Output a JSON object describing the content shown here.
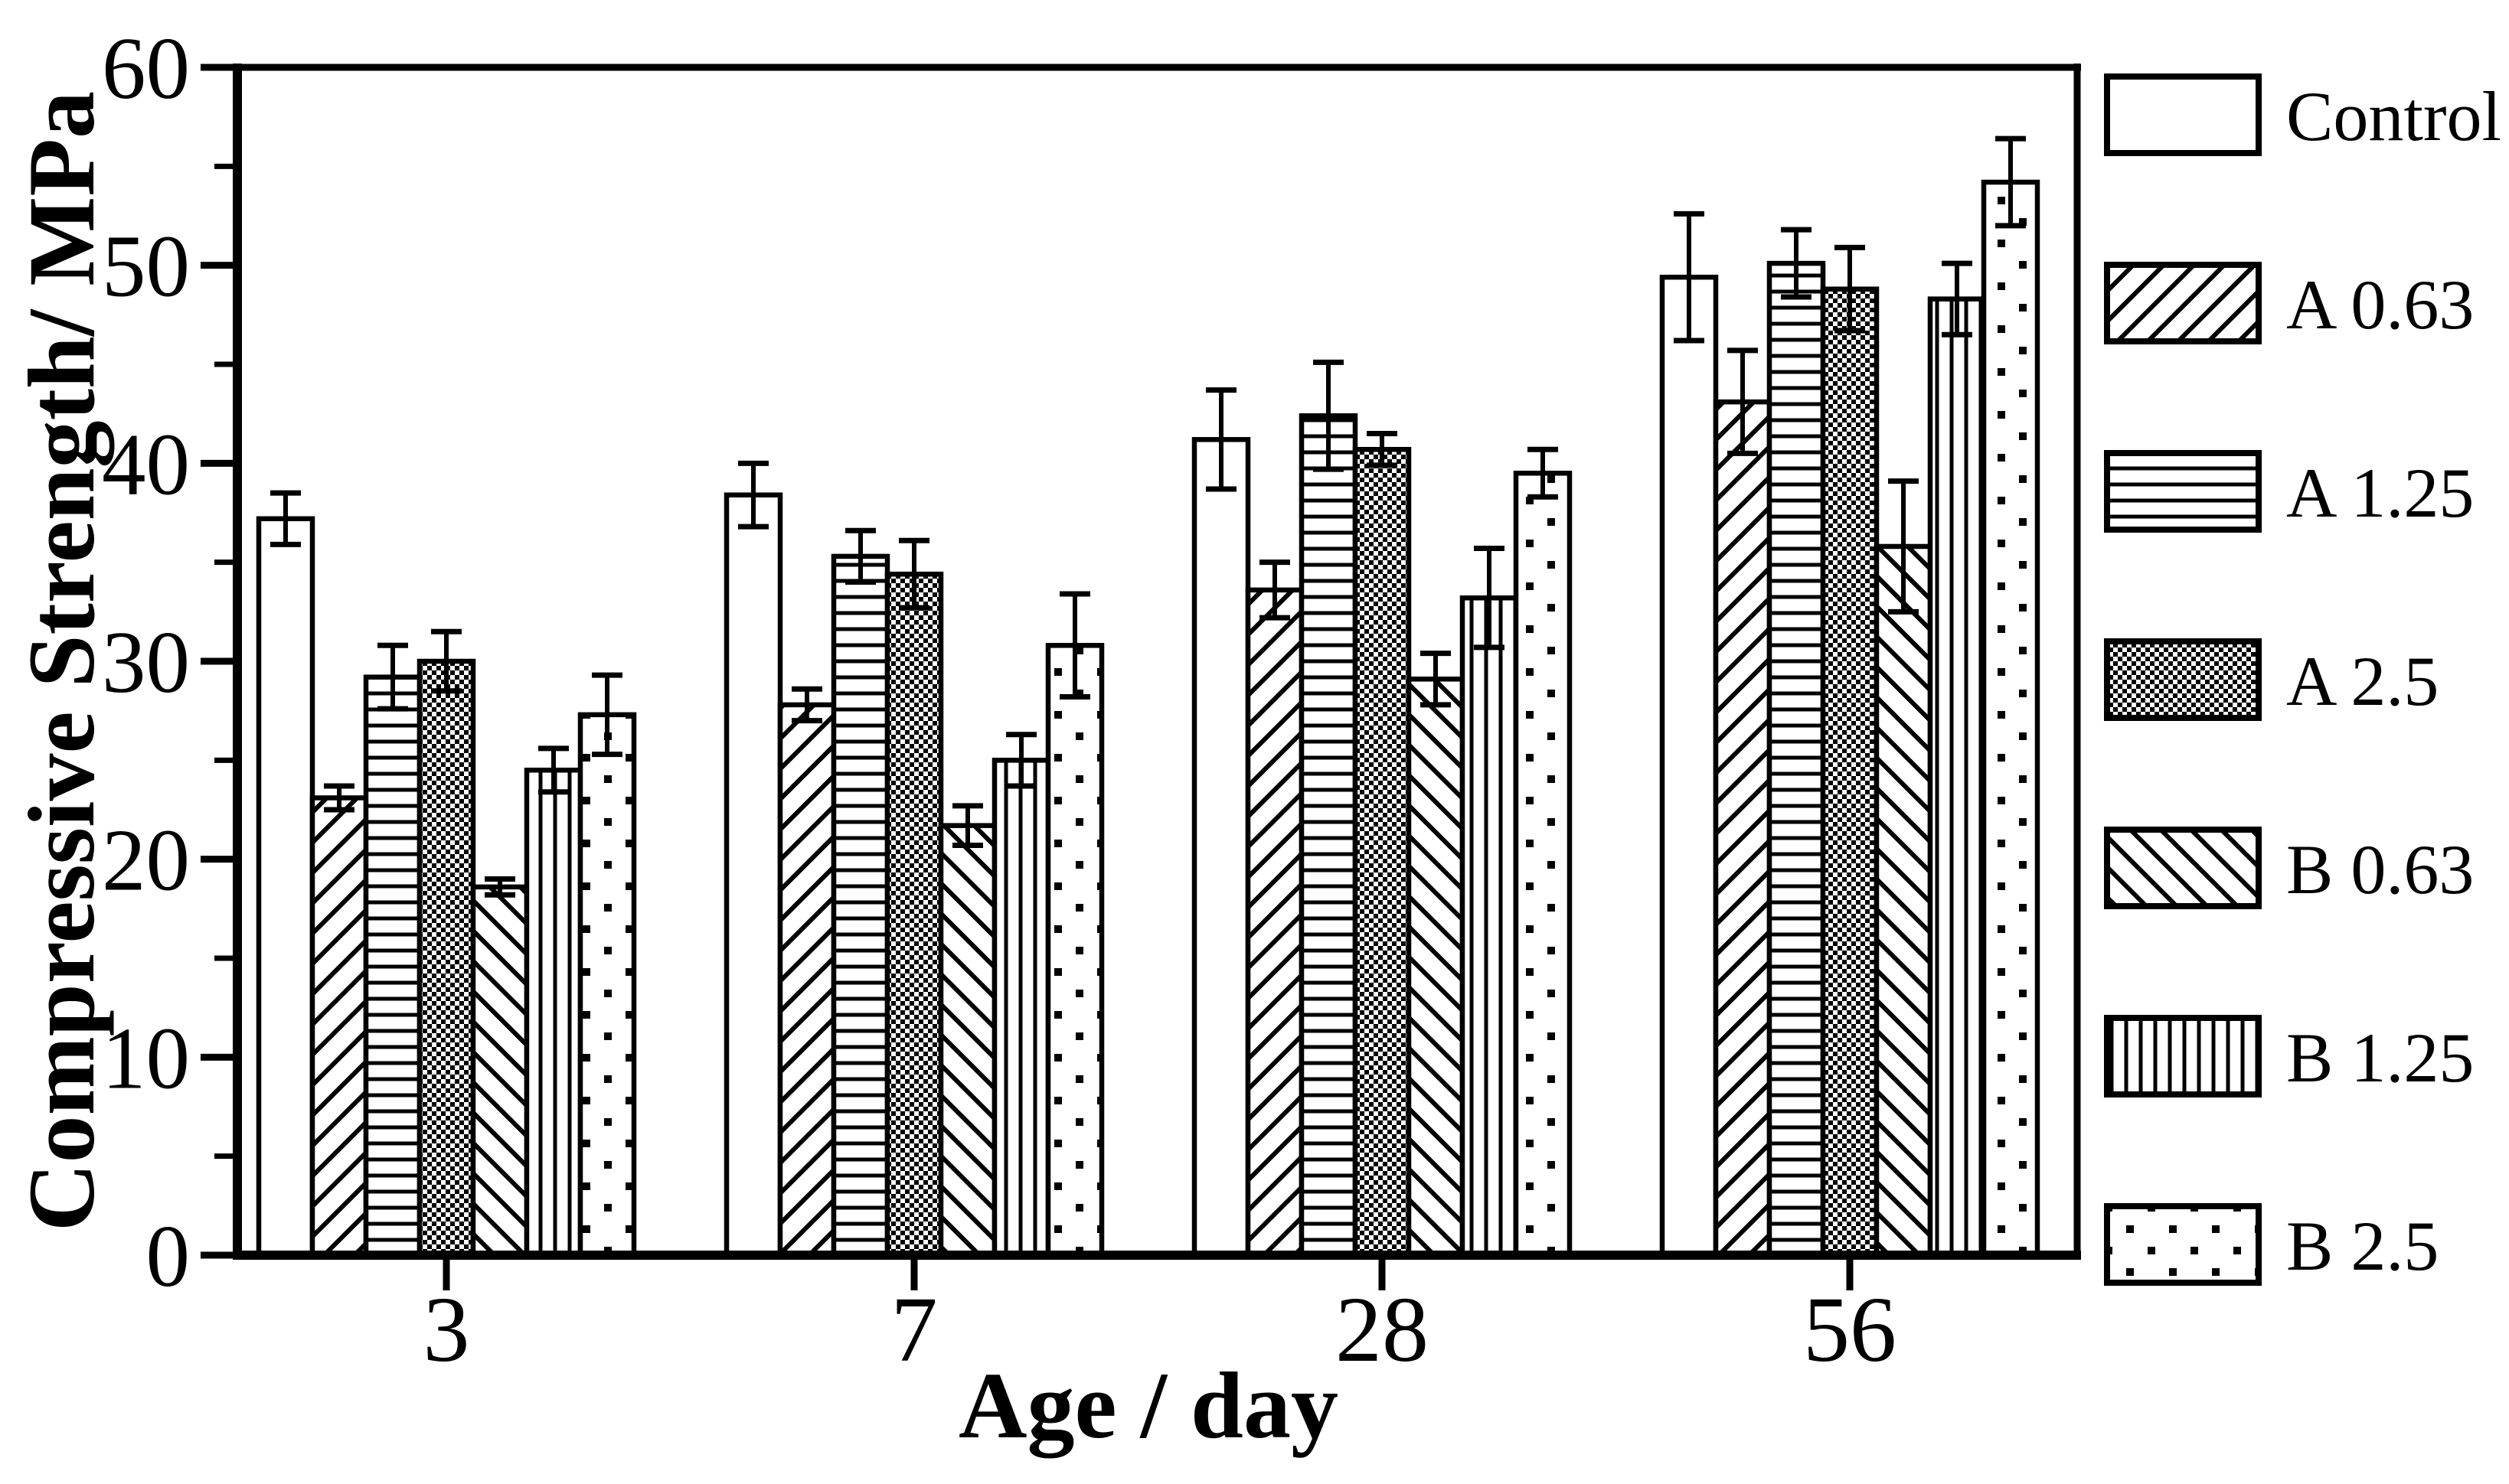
{
  "figure": {
    "background_color": "#ffffff",
    "ink_color": "#000000",
    "y_axis": {
      "title": "Compressive Strength/ MPa",
      "min": 0,
      "max": 60,
      "major_step": 10,
      "minor_step": 5,
      "major_tick_labels": [
        "0",
        "10",
        "20",
        "30",
        "40",
        "50",
        "60"
      ]
    },
    "x_axis": {
      "title": "Age / day",
      "tick_labels": [
        "3",
        "7",
        "28",
        "56"
      ]
    },
    "legend": {
      "items": [
        {
          "label": "Control",
          "pattern": "plain"
        },
        {
          "label": "A 0.63",
          "pattern": "diagonal-up"
        },
        {
          "label": "A 1.25",
          "pattern": "horizontal-lines"
        },
        {
          "label": "A 2.5",
          "pattern": "checkerboard"
        },
        {
          "label": "B 0.63",
          "pattern": "diagonal-down"
        },
        {
          "label": "B 1.25",
          "pattern": "vertical-lines"
        },
        {
          "label": "B 2.5",
          "pattern": "sparse-dots"
        }
      ]
    }
  },
  "chart_data": {
    "type": "bar",
    "title": "",
    "categories": [
      "3",
      "7",
      "28",
      "56"
    ],
    "xlabel": "Age / day",
    "ylabel": "Compressive Strength/ MPa",
    "ylim": [
      0,
      60
    ],
    "y_major_ticks": [
      0,
      10,
      20,
      30,
      40,
      50,
      60
    ],
    "y_minor_ticks": [
      5,
      15,
      25,
      35,
      45,
      55
    ],
    "grid": false,
    "legend_position": "outside-right",
    "bar_style": "black-and-white hatch patterns with error bars",
    "series": [
      {
        "name": "Control",
        "pattern": "plain",
        "values": [
          37.2,
          38.4,
          41.2,
          49.4
        ],
        "errors": [
          1.3,
          1.6,
          2.5,
          3.2
        ]
      },
      {
        "name": "A 0.63",
        "pattern": "diagonal-up",
        "values": [
          23.1,
          27.8,
          33.6,
          43.1
        ],
        "errors": [
          0.6,
          0.8,
          1.4,
          2.6
        ]
      },
      {
        "name": "A 1.25",
        "pattern": "horizontal-lines",
        "values": [
          29.2,
          35.3,
          42.4,
          50.1
        ],
        "errors": [
          1.6,
          1.3,
          2.7,
          1.7
        ]
      },
      {
        "name": "A 2.5",
        "pattern": "checkerboard",
        "values": [
          30.0,
          34.4,
          40.7,
          48.8
        ],
        "errors": [
          1.5,
          1.7,
          0.8,
          2.1
        ]
      },
      {
        "name": "B 0.63",
        "pattern": "diagonal-down",
        "values": [
          18.6,
          21.7,
          29.1,
          35.8
        ],
        "errors": [
          0.4,
          1.0,
          1.3,
          3.3
        ]
      },
      {
        "name": "B 1.25",
        "pattern": "vertical-lines",
        "values": [
          24.5,
          25.0,
          33.2,
          48.3
        ],
        "errors": [
          1.1,
          1.3,
          2.5,
          1.8
        ]
      },
      {
        "name": "B 2.5",
        "pattern": "sparse-dots",
        "values": [
          27.3,
          30.8,
          39.5,
          54.2
        ],
        "errors": [
          2.0,
          2.6,
          1.2,
          2.2
        ]
      }
    ]
  }
}
